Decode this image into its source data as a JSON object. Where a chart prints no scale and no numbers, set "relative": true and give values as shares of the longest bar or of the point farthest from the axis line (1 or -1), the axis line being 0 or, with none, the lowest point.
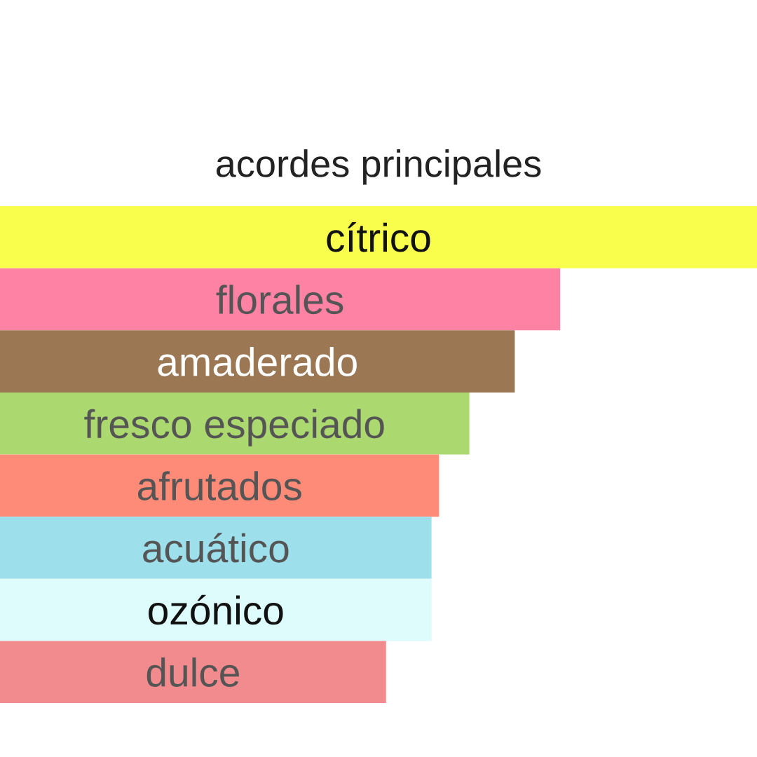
{
  "chart_data": {
    "type": "bar",
    "orientation": "horizontal",
    "relative": true,
    "title": "acordes principales",
    "categories": [
      "cítrico",
      "florales",
      "amaderado",
      "fresco especiado",
      "afrutados",
      "acuático",
      "ozónico",
      "dulce"
    ],
    "values": [
      1,
      0.74,
      0.68,
      0.62,
      0.58,
      0.57,
      0.57,
      0.51
    ],
    "colors": [
      "#f9fe4c",
      "#fe82a3",
      "#9c7753",
      "#acd96f",
      "#fe8b78",
      "#9edfec",
      "#ddfcfb",
      "#f28b8e"
    ]
  }
}
